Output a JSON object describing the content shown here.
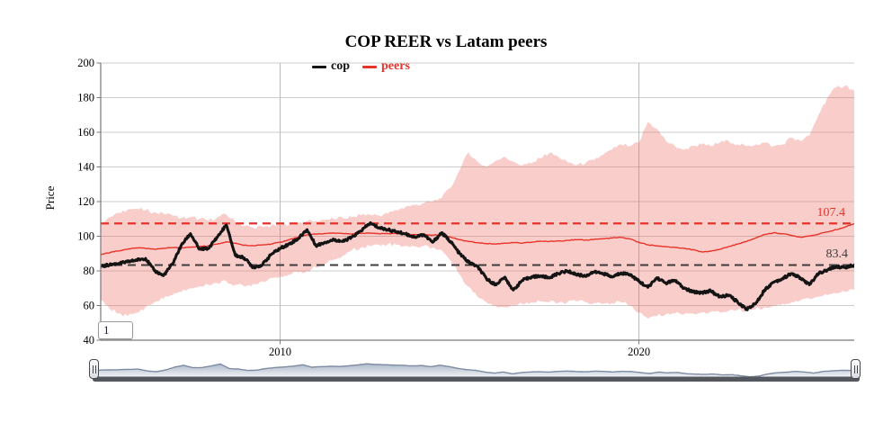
{
  "title": "COP REER vs Latam peers",
  "legend": {
    "items": [
      {
        "label": "cop",
        "color": "#141414"
      },
      {
        "label": "peers",
        "color": "#e8332a"
      }
    ]
  },
  "y_axis": {
    "label": "Price",
    "min": 40,
    "max": 200,
    "ticks": [
      200,
      180,
      160,
      140,
      120,
      100,
      80,
      60,
      40
    ]
  },
  "x_axis": {
    "ticks": [
      2010,
      2020
    ]
  },
  "reference_lines": [
    {
      "label": "107.4",
      "value": 107.4,
      "color": "#e8332a"
    },
    {
      "label": "83.4",
      "value": 83.4,
      "color": "#3d3d3d"
    }
  ],
  "range_selector": {
    "value": "1"
  },
  "colors": {
    "band": "rgba(235,90,80,0.30)",
    "cop": "#141414",
    "peers": "#e8332a",
    "grid_h": "#cdcdcd",
    "grid_v": "#b8b8b8",
    "axis": "#7a7a7a",
    "nav_line": "#7d8ba3",
    "nav_fill_top": "#aeb9c9",
    "nav_fill_bottom": "#f0f2f6",
    "nav_rail": "#54575d"
  },
  "chart_data": {
    "type": "line",
    "title": "COP REER vs Latam peers",
    "xlabel": "",
    "ylabel": "Price",
    "ylim": [
      40,
      200
    ],
    "xlim": [
      2005,
      2026
    ],
    "grid": true,
    "legend_position": "top",
    "x": [
      2005.0,
      2005.25,
      2005.5,
      2005.75,
      2006.0,
      2006.25,
      2006.5,
      2006.75,
      2007.0,
      2007.25,
      2007.5,
      2007.75,
      2008.0,
      2008.25,
      2008.5,
      2008.75,
      2009.0,
      2009.25,
      2009.5,
      2009.75,
      2010.0,
      2010.25,
      2010.5,
      2010.75,
      2011.0,
      2011.25,
      2011.5,
      2011.75,
      2012.0,
      2012.25,
      2012.5,
      2012.75,
      2013.0,
      2013.25,
      2013.5,
      2013.75,
      2014.0,
      2014.25,
      2014.5,
      2014.75,
      2015.0,
      2015.25,
      2015.5,
      2015.75,
      2016.0,
      2016.25,
      2016.5,
      2016.75,
      2017.0,
      2017.25,
      2017.5,
      2017.75,
      2018.0,
      2018.25,
      2018.5,
      2018.75,
      2019.0,
      2019.25,
      2019.5,
      2019.75,
      2020.0,
      2020.25,
      2020.5,
      2020.75,
      2021.0,
      2021.25,
      2021.5,
      2021.75,
      2022.0,
      2022.25,
      2022.5,
      2022.75,
      2023.0,
      2023.25,
      2023.5,
      2023.75,
      2024.0,
      2024.25,
      2024.5,
      2024.75,
      2025.0,
      2025.25,
      2025.5,
      2025.75,
      2026.0
    ],
    "series": [
      {
        "name": "cop",
        "color": "#141414",
        "values": [
          82.5,
          83.5,
          84.3,
          85.2,
          86.3,
          87.2,
          80,
          77.3,
          84,
          95,
          101.5,
          92.5,
          93,
          99.5,
          106.5,
          89,
          87.5,
          82,
          83.5,
          89.5,
          93,
          95.5,
          98.5,
          103.8,
          94.5,
          96.5,
          98,
          97,
          99.5,
          103,
          107.5,
          105,
          103.8,
          102.5,
          101.3,
          99.5,
          101,
          96.5,
          102,
          97,
          90,
          85,
          82.5,
          75.5,
          72,
          76.2,
          69,
          74.5,
          76.5,
          77,
          76,
          78.5,
          80,
          78,
          77,
          79.5,
          78.5,
          76.5,
          78.8,
          78,
          74,
          70.5,
          76,
          73,
          74.5,
          70,
          68,
          67.5,
          68.5,
          65,
          66,
          62,
          58,
          61,
          69,
          73.5,
          75.5,
          78.5,
          76,
          72,
          78.5,
          80.5,
          82.5,
          82,
          83.4
        ]
      },
      {
        "name": "peers",
        "color": "#e8332a",
        "values": [
          89.5,
          90.5,
          91.5,
          92.5,
          93.3,
          93,
          92.5,
          93,
          93.5,
          93.3,
          93.6,
          94,
          94.5,
          95.5,
          96.8,
          96,
          94.8,
          94.5,
          95,
          95.5,
          96.5,
          98,
          99.5,
          100.8,
          101.3,
          101.6,
          101.8,
          101.5,
          101.3,
          101.6,
          101.8,
          101.4,
          101.6,
          101.4,
          101.2,
          101,
          100.8,
          100.6,
          100.8,
          99.5,
          98,
          97,
          96.2,
          95.8,
          95.5,
          96,
          96.3,
          96,
          96.5,
          97.2,
          97,
          97.3,
          97.6,
          98,
          97.7,
          98.2,
          98.6,
          99,
          99.3,
          98.5,
          96.5,
          95,
          94.5,
          94,
          93.5,
          93,
          92.2,
          91,
          91.3,
          92.5,
          94,
          95.5,
          97,
          99,
          101,
          102,
          101.5,
          100.5,
          99.5,
          100.2,
          101.2,
          102.5,
          103.8,
          105.3,
          107.4
        ]
      }
    ],
    "band": {
      "name": "peers min-max range",
      "color": "rgba(235,90,80,0.30)",
      "max": [
        108,
        111,
        113.5,
        115.5,
        116,
        115,
        114,
        113,
        112,
        110.5,
        111,
        110,
        109,
        111,
        112.5,
        108.5,
        106,
        105,
        105.5,
        106,
        106.5,
        107,
        107.5,
        108.5,
        109,
        109.5,
        110,
        110.5,
        111,
        112,
        112.5,
        112,
        113,
        115,
        117,
        118,
        119,
        120,
        122,
        128,
        138,
        148.5,
        143,
        140,
        143.5,
        146,
        143,
        141,
        142,
        145,
        148,
        146,
        143,
        141,
        142,
        144,
        147,
        150,
        153,
        152,
        154,
        166,
        162,
        155,
        152,
        150,
        152,
        153,
        152,
        154,
        155,
        153,
        152,
        153,
        154,
        152,
        153,
        157,
        155,
        158,
        170,
        180,
        186,
        187,
        184
      ],
      "min": [
        63,
        58,
        55.5,
        54,
        56,
        59,
        62,
        64,
        66,
        68,
        70,
        71,
        72,
        73,
        74,
        72,
        71,
        72.5,
        74,
        76,
        77,
        78,
        79,
        80,
        82,
        84,
        86.5,
        89,
        92,
        93.5,
        94.5,
        95,
        95.5,
        95,
        94.5,
        94,
        94.5,
        93.5,
        92,
        86,
        78,
        71,
        65,
        62,
        60,
        59,
        60,
        61,
        62,
        62.5,
        62,
        61.5,
        62,
        62.5,
        62,
        61.5,
        61,
        61.5,
        62,
        60,
        56,
        52.5,
        54,
        55,
        55.5,
        55,
        55.5,
        56,
        56.5,
        56,
        57,
        57.5,
        57,
        58,
        59,
        60,
        61,
        62,
        63,
        64,
        65,
        66,
        67,
        68,
        69
      ]
    },
    "navigator": {
      "mirrors_series": "cop"
    }
  }
}
